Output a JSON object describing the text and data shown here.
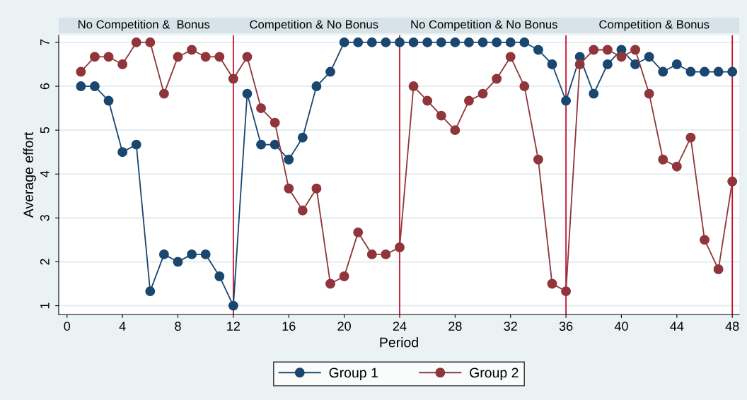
{
  "chart_data": {
    "type": "line",
    "xlabel": "Period",
    "ylabel": "Average effort",
    "x": [
      1,
      2,
      3,
      4,
      5,
      6,
      7,
      8,
      9,
      10,
      11,
      12,
      13,
      14,
      15,
      16,
      17,
      18,
      19,
      20,
      21,
      22,
      23,
      24,
      25,
      26,
      27,
      28,
      29,
      30,
      31,
      32,
      33,
      34,
      35,
      36,
      37,
      38,
      39,
      40,
      41,
      42,
      43,
      44,
      45,
      46,
      47,
      48
    ],
    "series": [
      {
        "name": "Group 1",
        "color": "#1a476f",
        "values": [
          6,
          6,
          5.67,
          4.5,
          4.67,
          1.33,
          2.17,
          2,
          2.17,
          2.17,
          1.67,
          1,
          5.83,
          4.67,
          4.67,
          4.33,
          4.83,
          6,
          6.33,
          7,
          7,
          7,
          7,
          7,
          7,
          7,
          7,
          7,
          7,
          7,
          7,
          7,
          7,
          6.83,
          6.5,
          5.67,
          6.67,
          5.83,
          6.5,
          6.83,
          6.5,
          6.67,
          6.33,
          6.5,
          6.33,
          6.33,
          6.33,
          6.33
        ]
      },
      {
        "name": "Group 2",
        "color": "#90353b",
        "values": [
          6.33,
          6.67,
          6.67,
          6.5,
          7,
          7,
          5.83,
          6.67,
          6.83,
          6.67,
          6.67,
          6.17,
          6.67,
          5.5,
          5.17,
          3.67,
          3.17,
          3.67,
          1.5,
          1.67,
          2.67,
          2.17,
          2.17,
          2.33,
          6,
          5.67,
          5.33,
          5,
          5.67,
          5.83,
          6.17,
          6.67,
          6,
          4.33,
          1.5,
          1.33,
          6.5,
          6.83,
          6.83,
          6.67,
          6.83,
          5.83,
          4.33,
          4.17,
          4.83,
          2.5,
          1.83,
          3.83
        ]
      }
    ],
    "xlim": [
      -0.6,
      48.5
    ],
    "xticks": [
      0,
      4,
      8,
      12,
      16,
      20,
      24,
      28,
      32,
      36,
      40,
      44,
      48
    ],
    "ylim": [
      0.8,
      7.16
    ],
    "yticks": [
      1,
      2,
      3,
      4,
      5,
      6,
      7
    ],
    "ref_lines": [
      {
        "axis": "x",
        "value": 12,
        "color": "#c8102e"
      },
      {
        "axis": "x",
        "value": 24,
        "color": "#c8102e"
      },
      {
        "axis": "x",
        "value": 36,
        "color": "#c8102e"
      },
      {
        "axis": "x",
        "value": 48,
        "color": "#c8102e"
      }
    ],
    "annotations": [
      "No Competition &  Bonus",
      "Competition & No Bonus",
      "No Competition & No Bonus",
      "Competition & Bonus"
    ],
    "grid": "y",
    "legend": "bottom",
    "marker": "circle",
    "line_style": "solid"
  }
}
